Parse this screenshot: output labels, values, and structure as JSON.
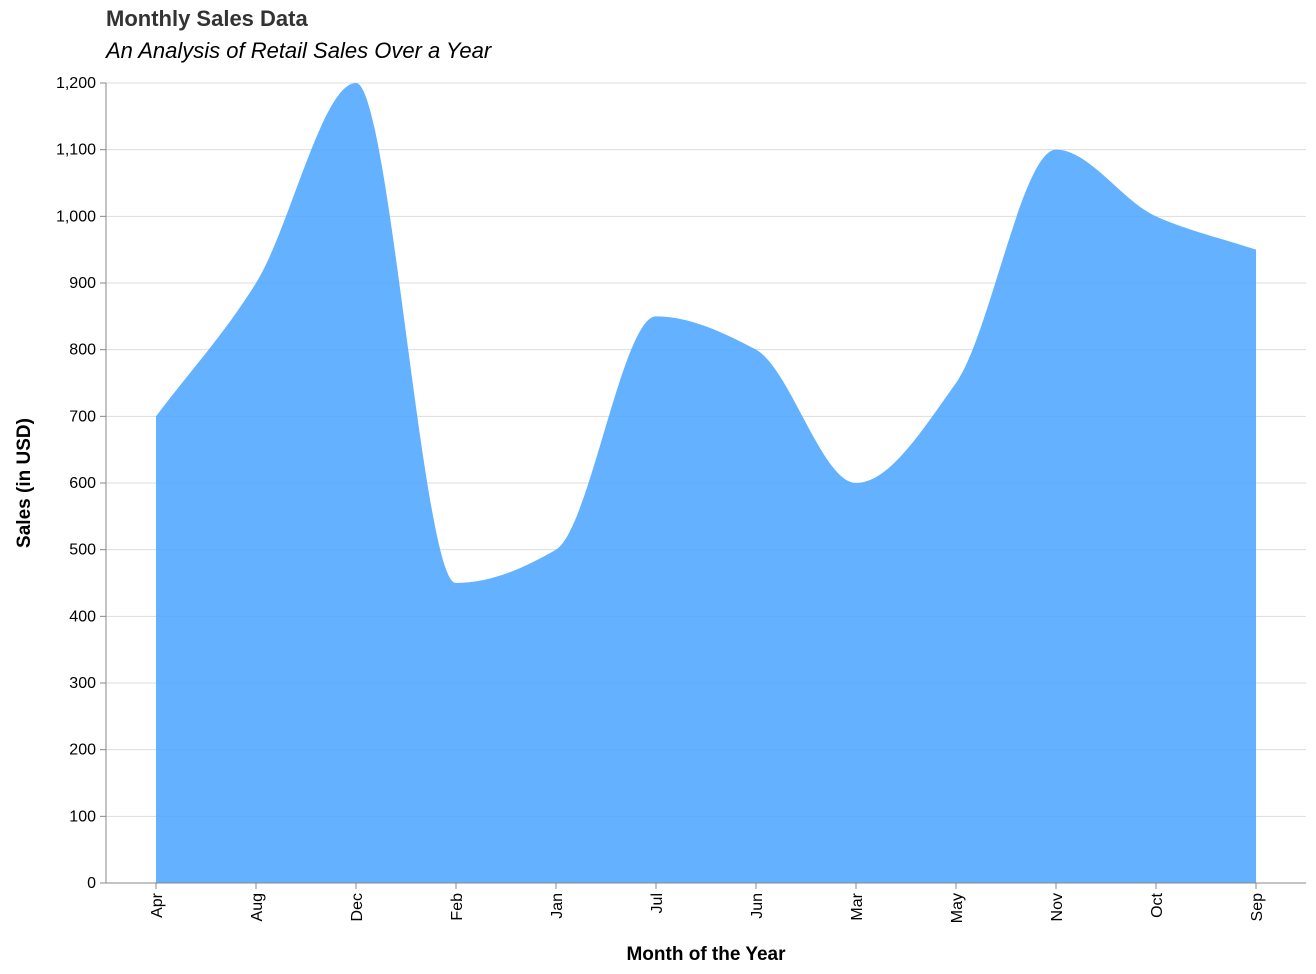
{
  "chart_data": {
    "type": "area",
    "title": "Monthly Sales Data",
    "subtitle": "An Analysis of Retail Sales Over a Year",
    "xlabel": "Month of the Year",
    "ylabel": "Sales (in USD)",
    "categories": [
      "Apr",
      "Aug",
      "Dec",
      "Feb",
      "Jan",
      "Jul",
      "Jun",
      "Mar",
      "May",
      "Nov",
      "Oct",
      "Sep"
    ],
    "values": [
      700,
      900,
      1200,
      450,
      500,
      850,
      800,
      600,
      750,
      1100,
      1000,
      950
    ],
    "ylim": [
      0,
      1200
    ],
    "yticks": [
      0,
      100,
      200,
      300,
      400,
      500,
      600,
      700,
      800,
      900,
      1000,
      1100,
      1200
    ],
    "ytick_labels": [
      "0",
      "100",
      "200",
      "300",
      "400",
      "500",
      "600",
      "700",
      "800",
      "900",
      "1,000",
      "1,100",
      "1,200"
    ],
    "grid": true,
    "interpolation": "monotone",
    "color": "#4da6ff",
    "fill_opacity": 0.88,
    "gridline_color": "#dddddd",
    "axis_color": "#888888"
  }
}
